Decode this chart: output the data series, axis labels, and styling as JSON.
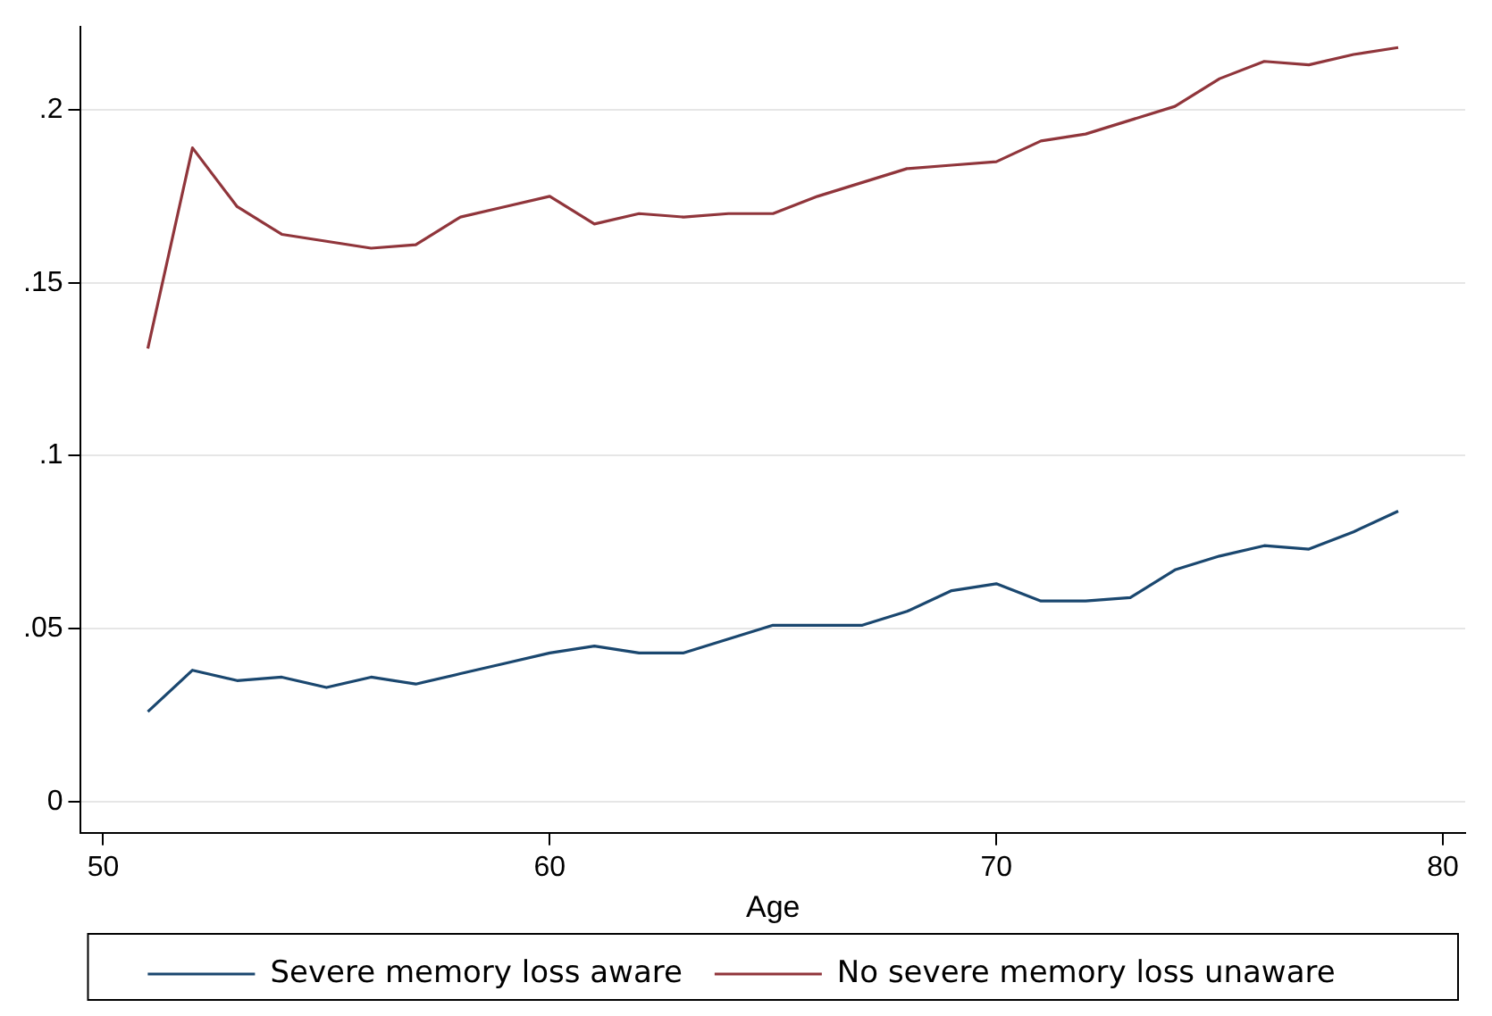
{
  "chart_data": {
    "type": "line",
    "xlabel": "Age",
    "x": [
      51,
      52,
      53,
      54,
      55,
      56,
      57,
      58,
      59,
      60,
      61,
      62,
      63,
      64,
      65,
      66,
      67,
      68,
      69,
      70,
      71,
      72,
      73,
      74,
      75,
      76,
      77,
      78,
      79
    ],
    "series": [
      {
        "name": "Severe memory loss aware",
        "color": "#1a476f",
        "values": [
          0.026,
          0.038,
          0.035,
          0.036,
          0.033,
          0.036,
          0.034,
          0.037,
          0.04,
          0.043,
          0.045,
          0.043,
          0.043,
          0.047,
          0.051,
          0.051,
          0.051,
          0.055,
          0.061,
          0.063,
          0.058,
          0.058,
          0.059,
          0.067,
          0.071,
          0.074,
          0.073,
          0.078,
          0.084
        ]
      },
      {
        "name": "No severe memory loss unaware",
        "color": "#90353b",
        "values": [
          0.131,
          0.189,
          0.172,
          0.164,
          0.162,
          0.16,
          0.161,
          0.169,
          0.172,
          0.175,
          0.167,
          0.17,
          0.169,
          0.17,
          0.17,
          0.175,
          0.179,
          0.183,
          0.184,
          0.185,
          0.191,
          0.193,
          0.197,
          0.201,
          0.209,
          0.214,
          0.213,
          0.216,
          0.218
        ]
      }
    ],
    "xlim": [
      49.5,
      80.5
    ],
    "xticks": [
      50,
      60,
      70,
      80
    ],
    "ylim": [
      -0.009,
      0.224
    ],
    "yticks": [
      {
        "value": 0,
        "label": "0"
      },
      {
        "value": 0.05,
        "label": ".05"
      },
      {
        "value": 0.1,
        "label": ".1"
      },
      {
        "value": 0.15,
        "label": ".15"
      },
      {
        "value": 0.2,
        "label": ".2"
      }
    ],
    "grid": "y",
    "legend": "bottom",
    "marker": "none",
    "line_style": "solid"
  }
}
